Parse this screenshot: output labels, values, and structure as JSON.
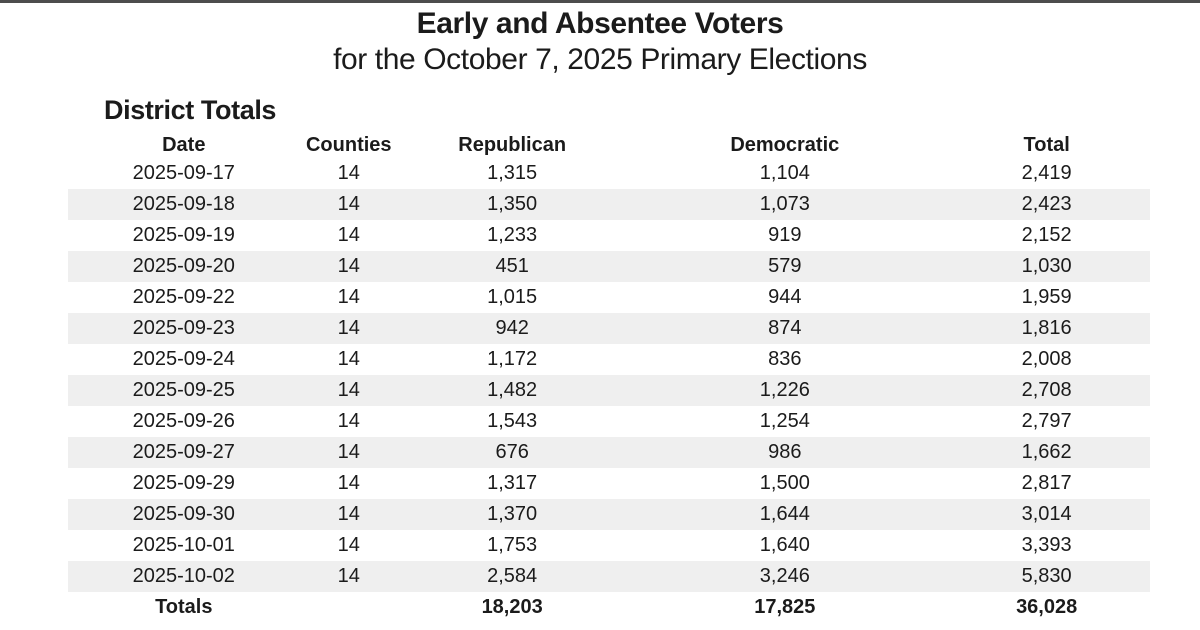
{
  "page": {
    "title_line1": "Early and Absentee Voters",
    "title_line2": "for the October 7, 2025 Primary Elections",
    "section_heading": "District Totals"
  },
  "colors": {
    "top_rule": "#4d4d4d",
    "row_stripe": "#efefef",
    "text": "#1b1b1b"
  },
  "chart_data": {
    "type": "table",
    "title": "Early and Absentee Voters for the October 7, 2025 Primary Elections",
    "section": "District Totals",
    "columns": [
      "Date",
      "Counties",
      "Republican",
      "Democratic",
      "Total"
    ],
    "rows": [
      [
        "2025-09-17",
        "14",
        "1,315",
        "1,104",
        "2,419"
      ],
      [
        "2025-09-18",
        "14",
        "1,350",
        "1,073",
        "2,423"
      ],
      [
        "2025-09-19",
        "14",
        "1,233",
        "919",
        "2,152"
      ],
      [
        "2025-09-20",
        "14",
        "451",
        "579",
        "1,030"
      ],
      [
        "2025-09-22",
        "14",
        "1,015",
        "944",
        "1,959"
      ],
      [
        "2025-09-23",
        "14",
        "942",
        "874",
        "1,816"
      ],
      [
        "2025-09-24",
        "14",
        "1,172",
        "836",
        "2,008"
      ],
      [
        "2025-09-25",
        "14",
        "1,482",
        "1,226",
        "2,708"
      ],
      [
        "2025-09-26",
        "14",
        "1,543",
        "1,254",
        "2,797"
      ],
      [
        "2025-09-27",
        "14",
        "676",
        "986",
        "1,662"
      ],
      [
        "2025-09-29",
        "14",
        "1,317",
        "1,500",
        "2,817"
      ],
      [
        "2025-09-30",
        "14",
        "1,370",
        "1,644",
        "3,014"
      ],
      [
        "2025-10-01",
        "14",
        "1,753",
        "1,640",
        "3,393"
      ],
      [
        "2025-10-02",
        "14",
        "2,584",
        "3,246",
        "5,830"
      ]
    ],
    "totals_row": [
      "Totals",
      "",
      "18,203",
      "17,825",
      "36,028"
    ],
    "layout_hints": {
      "striped_rows": "even",
      "column_alignment": "center",
      "totals_bold": true
    }
  }
}
